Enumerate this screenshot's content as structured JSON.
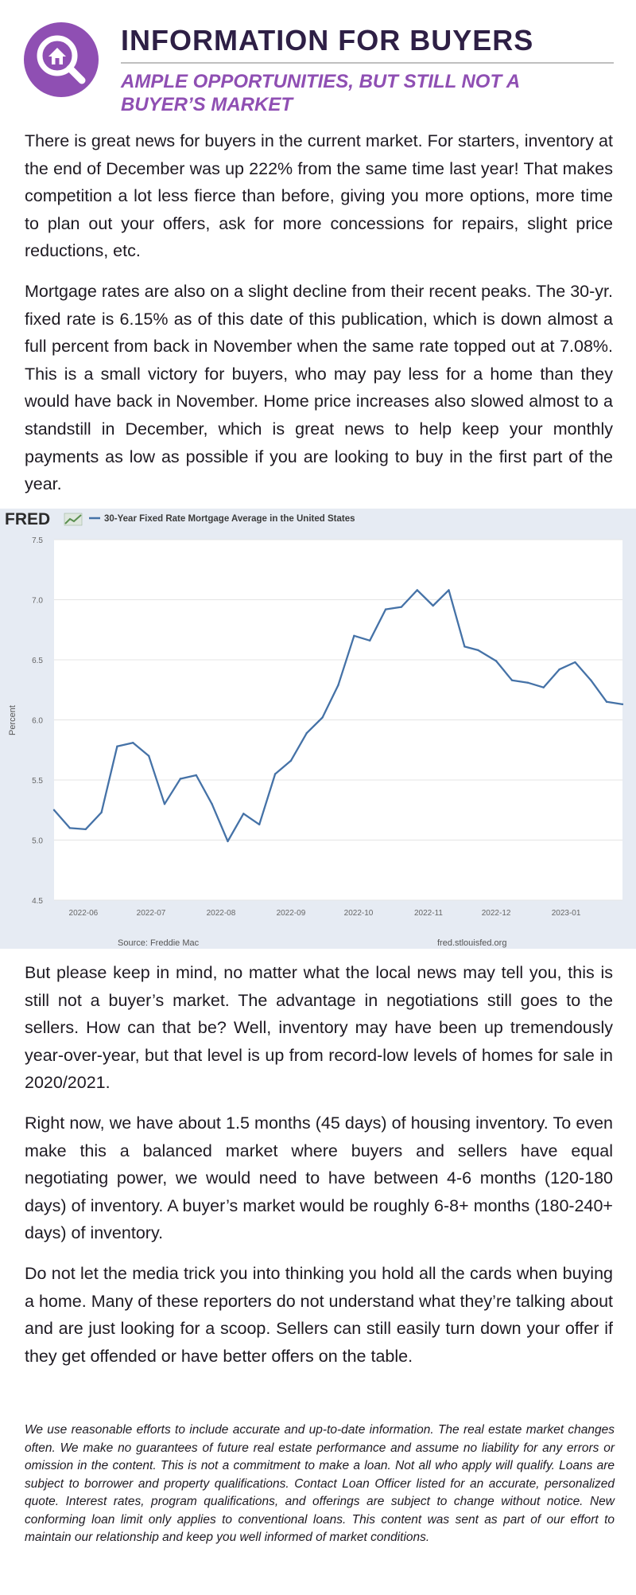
{
  "header": {
    "title": "INFORMATION FOR BUYERS",
    "subtitle": "AMPLE OPPORTUNITIES, BUT STILL NOT A BUYER’S MARKET",
    "logo_icon": "house-search-icon",
    "accent_color": "#8f4fb3",
    "title_color": "#2e1f45"
  },
  "paragraphs": [
    "There is great news for buyers in the current market. For starters, inventory at the end of December was up 222% from the same time last year! That makes competition a lot less fierce than before, giving you more options, more time to plan out your offers, ask for more concessions for repairs, slight price reductions, etc.",
    "Mortgage rates are also on a slight decline from their recent peaks. The 30-yr. fixed rate is 6.15% as of this date of this publication, which is down almost a full percent from back in November when the same rate topped out at 7.08%. This is a small victory for buyers, who may pay less for a home than they would have back in November. Home price increases also slowed almost to a standstill in December, which is great news to help keep your monthly payments as low as possible if you are looking to buy in the first part of the year.",
    "But please keep in mind, no matter what the local news may tell you, this is still not a buyer’s market. The advantage in negotiations still goes to the sellers. How can that be? Well, inventory may have been up tremendously year-over-year, but that level is up from record-low levels of homes for sale in 2020/2021.",
    "Right now, we have about 1.5 months (45 days) of housing inventory. To even make this a balanced market where buyers and sellers have equal negotiating power, we would need to have between 4-6 months (120-180 days) of inventory. A buyer’s market would be roughly 6-8+ months (180-240+ days) of inventory.",
    "Do not let the media trick you into thinking you hold all the cards when buying a home. Many of these reporters do not understand what they’re talking about and are just looking for a scoop. Sellers can still easily turn down your offer if they get offended or have better offers on the table."
  ],
  "disclaimer": "We use reasonable efforts to include accurate and up-to-date information. The real estate market changes often. We make no guarantees of future real estate performance  and assume no liability for any errors or omission in the content. This is not a commitment to make a loan. Not all who apply will qualify. Loans are subject to borrower and property qualifications. Contact Loan Officer listed for an accurate, personalized quote. Interest rates, program qualifications, and offerings are subject to change without notice. New conforming loan limit only applies to conventional loans. This content was sent as part of our effort to maintain our relationship and keep you well informed of market conditions.",
  "chart": {
    "brand": "FRED",
    "source": "Source: Freddie Mac",
    "site": "fred.stlouisfed.org"
  },
  "chart_data": {
    "type": "line",
    "title": "",
    "xlabel": "",
    "ylabel": "Percent",
    "ylim": [
      4.5,
      7.5
    ],
    "yticks": [
      "4.5",
      "5.0",
      "5.5",
      "6.0",
      "6.5",
      "7.0",
      "7.5"
    ],
    "xticks": [
      "2022-06",
      "2022-07",
      "2022-08",
      "2022-09",
      "2022-10",
      "2022-11",
      "2022-12",
      "2023-01"
    ],
    "grid": true,
    "legend_position": "top-left",
    "series_color": "#4572a7",
    "series": [
      {
        "name": "30-Year Fixed Rate Mortgage Average in the United States",
        "x": [
          "2022-05-19",
          "2022-05-26",
          "2022-06-02",
          "2022-06-09",
          "2022-06-16",
          "2022-06-23",
          "2022-06-30",
          "2022-07-07",
          "2022-07-14",
          "2022-07-21",
          "2022-07-28",
          "2022-08-04",
          "2022-08-11",
          "2022-08-18",
          "2022-08-25",
          "2022-09-01",
          "2022-09-08",
          "2022-09-15",
          "2022-09-22",
          "2022-09-29",
          "2022-10-06",
          "2022-10-13",
          "2022-10-20",
          "2022-10-27",
          "2022-11-03",
          "2022-11-10",
          "2022-11-17",
          "2022-11-23",
          "2022-12-01",
          "2022-12-08",
          "2022-12-15",
          "2022-12-22",
          "2022-12-29",
          "2023-01-05",
          "2023-01-12",
          "2023-01-19",
          "2023-01-26"
        ],
        "values": [
          5.25,
          5.1,
          5.09,
          5.23,
          5.78,
          5.81,
          5.7,
          5.3,
          5.51,
          5.54,
          5.3,
          4.99,
          5.22,
          5.13,
          5.55,
          5.66,
          5.89,
          6.02,
          6.29,
          6.7,
          6.66,
          6.92,
          6.94,
          7.08,
          6.95,
          7.08,
          6.61,
          6.58,
          6.49,
          6.33,
          6.31,
          6.27,
          6.42,
          6.48,
          6.33,
          6.15,
          6.13
        ]
      }
    ]
  }
}
